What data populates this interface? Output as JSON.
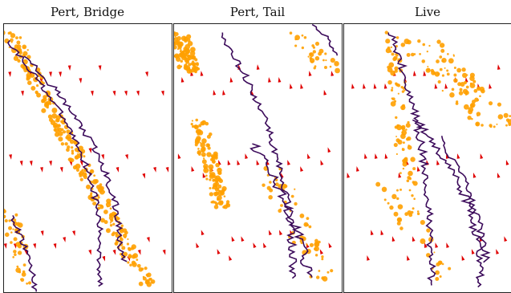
{
  "panels": [
    {
      "title": "Pert, Bridge"
    },
    {
      "title": "Pert, Tail"
    },
    {
      "title": "Live"
    }
  ],
  "colors": {
    "streamline": "#e00000",
    "arrow": "#e00000",
    "blob": "#ffa000",
    "contour": "#3b0a5a"
  }
}
